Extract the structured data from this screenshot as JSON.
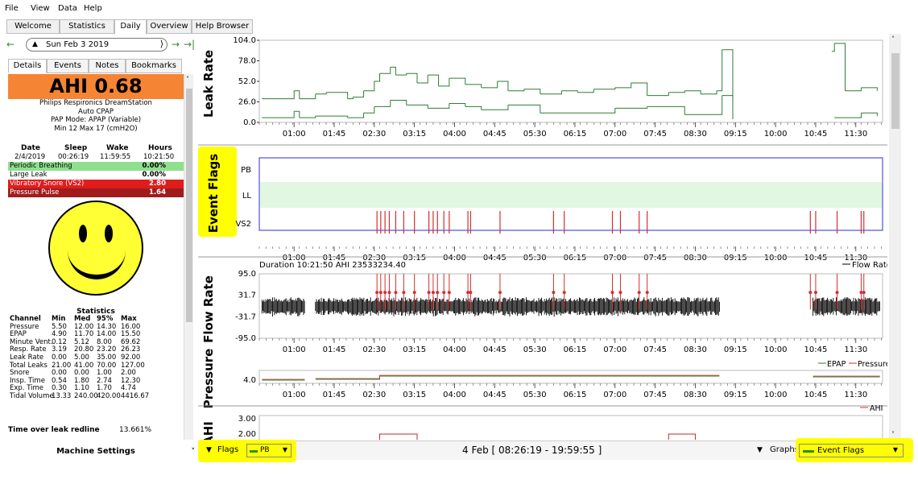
{
  "menu": [
    "File",
    "View",
    "Data",
    "Help"
  ],
  "main_tabs": [
    "Welcome",
    "Statistics",
    "Daily",
    "Overview",
    "Help Browser"
  ],
  "active_tab": "Daily",
  "date_nav": {
    "date": "Sun Feb 3 2019"
  },
  "sub_tabs": [
    "Details",
    "Events",
    "Notes",
    "Bookmarks"
  ],
  "ahi": "AHI 0.68",
  "machine": {
    "model": "Philips Respironics DreamStation",
    "type": "Auto CPAP",
    "mode": "PAP Mode: APAP (Variable)",
    "pressure": "Min 12 Max 17 (cmH2O)"
  },
  "session_header": [
    "Date",
    "Sleep",
    "Wake",
    "Hours"
  ],
  "session_row": [
    "2/4/2019",
    "00:26:19",
    "11:59:55",
    "10:21:50"
  ],
  "event_summary": [
    {
      "name": "Periodic Breathing",
      "value": "0.00%",
      "color": "#8ee08e",
      "text_color": "#000000"
    },
    {
      "name": "Large Leak",
      "value": "0.00%",
      "color": "#ffffff",
      "text_color": "#000000"
    },
    {
      "name": "Vibratory Snore (VS2)",
      "value": "2.80",
      "color": "#e11c1c",
      "text_color": "#ffffff"
    },
    {
      "name": "Pressure Pulse",
      "value": "1.64",
      "color": "#a01c1c",
      "text_color": "#ffffff"
    }
  ],
  "stats_title": "Statistics",
  "stats_header": [
    "Channel",
    "Min",
    "Med",
    "95%",
    "Max"
  ],
  "stats_rows": [
    [
      "Pressure",
      "5.50",
      "12.00",
      "14.30",
      "16.00"
    ],
    [
      "EPAP",
      "4.90",
      "11.70",
      "14.00",
      "15.50"
    ],
    [
      "Minute Vent.",
      "0.12",
      "5.12",
      "8.00",
      "69.62"
    ],
    [
      "Resp. Rate",
      "3.19",
      "20.80",
      "23.20",
      "26.23"
    ],
    [
      "Leak Rate",
      "0.00",
      "5.00",
      "35.00",
      "92.00"
    ],
    [
      "Total Leaks",
      "21.00",
      "41.00",
      "70.00",
      "127.00"
    ],
    [
      "Snore",
      "0.00",
      "0.00",
      "1.00",
      "2.00"
    ],
    [
      "Insp. Time",
      "0.54",
      "1.80",
      "2.74",
      "12.30"
    ],
    [
      "Exp. Time",
      "0.30",
      "1.10",
      "1.70",
      "4.74"
    ],
    [
      "Tidal Volume",
      "13.33",
      "240.00",
      "420.00",
      "4416.67"
    ]
  ],
  "leak_redline": {
    "label": "Time over leak redline",
    "value": "13.661%"
  },
  "machine_settings": "Machine Settings",
  "bottom": {
    "flags_label": "Flags",
    "flags_select": "PB",
    "range": "4 Feb [ 08:26:19 - 19:59:55 ]",
    "graphs_label": "Graphs",
    "graphs_select": "Event Flags"
  },
  "chart_data": [
    {
      "type": "line",
      "ylabel": "Leak Rate",
      "yticks": [
        "104.0",
        "78.0",
        "52.0",
        "26.0",
        "0.0"
      ],
      "ylim": [
        0,
        104
      ],
      "x_ticks": [
        "01:00",
        "01:45",
        "02:30",
        "03:15",
        "04:00",
        "04:45",
        "05:30",
        "06:15",
        "07:00",
        "07:45",
        "08:30",
        "09:15",
        "10:00",
        "10:45",
        "11:30"
      ],
      "color": "#2e7d32",
      "series": [
        {
          "x": [
            0.4,
            0.9,
            1.0,
            1.1,
            1.4,
            1.5,
            1.6,
            2.0,
            2.1,
            2.3,
            2.5,
            2.6,
            2.8,
            2.9,
            3.1,
            3.3,
            3.5,
            3.7,
            3.9,
            4.2,
            4.5,
            4.8,
            5.0,
            5.3,
            5.6,
            6.0,
            6.3,
            6.6,
            7.0,
            7.3,
            7.6,
            8.0,
            8.3,
            8.6,
            8.9,
            9.0,
            9.2,
            11.05,
            11.1,
            11.3,
            11.6,
            11.9
          ],
          "y": [
            30,
            30,
            40,
            30,
            36,
            36,
            38,
            30,
            32,
            40,
            52,
            62,
            70,
            60,
            62,
            50,
            60,
            46,
            56,
            48,
            44,
            52,
            40,
            42,
            36,
            40,
            38,
            42,
            44,
            50,
            34,
            38,
            40,
            36,
            40,
            92,
            30,
            90,
            100,
            40,
            44,
            40
          ]
        },
        {
          "x": [
            0.4,
            0.9,
            1.0,
            1.1,
            1.4,
            1.6,
            2.0,
            2.3,
            2.5,
            2.8,
            3.1,
            3.5,
            3.9,
            4.2,
            4.5,
            5.0,
            5.6,
            6.3,
            7.0,
            7.6,
            8.3,
            8.9,
            9.0,
            9.2,
            11.1,
            11.6,
            11.9
          ],
          "y": [
            6,
            6,
            14,
            6,
            8,
            8,
            6,
            12,
            20,
            28,
            22,
            18,
            24,
            20,
            16,
            22,
            12,
            12,
            18,
            20,
            10,
            10,
            34,
            4,
            6,
            12,
            8
          ]
        }
      ]
    },
    {
      "type": "event_flags",
      "ylabel": "Event Flags",
      "rows": [
        "PB",
        "LL",
        "VS2"
      ],
      "x_ticks": [
        "01:00",
        "01:45",
        "02:30",
        "03:15",
        "04:00",
        "04:45",
        "05:30",
        "06:15",
        "07:00",
        "07:45",
        "08:30",
        "09:15",
        "10:00",
        "10:45",
        "11:30"
      ],
      "ll_band": true,
      "vs2_events": [
        2.55,
        2.62,
        2.7,
        2.78,
        2.9,
        3.05,
        3.25,
        3.52,
        3.6,
        3.68,
        3.8,
        3.9,
        4.25,
        4.3,
        4.85,
        5.85,
        6.05,
        6.95,
        7.1,
        7.45,
        7.6,
        10.65,
        10.75,
        11.15,
        11.6,
        11.65
      ],
      "vs2_color": "#d32f2f"
    },
    {
      "type": "line",
      "ylabel": "Flow Rate",
      "title": "Duration 10:21:50 AHI 23533234.40",
      "legend": [
        "Flow Rate"
      ],
      "yticks": [
        "95.0",
        "31.7",
        "-31.7",
        "-95.0"
      ],
      "ylim": [
        -95,
        95
      ],
      "x_ticks": [
        "01:00",
        "01:45",
        "02:30",
        "03:15",
        "04:00",
        "04:45",
        "05:30",
        "06:15",
        "07:00",
        "07:45",
        "08:30",
        "09:15",
        "10:00",
        "10:45",
        "11:30"
      ],
      "segments": [
        [
          0.4,
          1.2
        ],
        [
          1.4,
          8.95
        ],
        [
          10.7,
          11.95
        ]
      ],
      "event_marks": [
        2.55,
        2.62,
        2.7,
        2.78,
        2.9,
        3.05,
        3.25,
        3.52,
        3.6,
        3.68,
        3.8,
        3.9,
        4.25,
        4.3,
        4.85,
        5.85,
        6.05,
        6.95,
        7.1,
        7.45,
        7.6,
        10.65,
        10.75,
        11.15,
        11.6,
        11.65
      ]
    },
    {
      "type": "line",
      "ylabel": "Pressure",
      "legend": [
        "EPAP",
        "Pressure"
      ],
      "yticks": [
        "4.0"
      ],
      "x_ticks": [
        "01:00",
        "01:45",
        "02:30",
        "03:15",
        "04:00",
        "04:45",
        "05:30",
        "06:15",
        "07:00",
        "07:45",
        "08:30",
        "09:15",
        "10:00",
        "10:45",
        "11:30"
      ]
    },
    {
      "type": "line",
      "ylabel": "AHI",
      "legend": [
        "AHI"
      ],
      "yticks": [
        "3.00",
        "2.00"
      ],
      "blocks": [
        [
          2.6,
          3.3
        ],
        [
          8.0,
          8.5
        ]
      ]
    }
  ]
}
